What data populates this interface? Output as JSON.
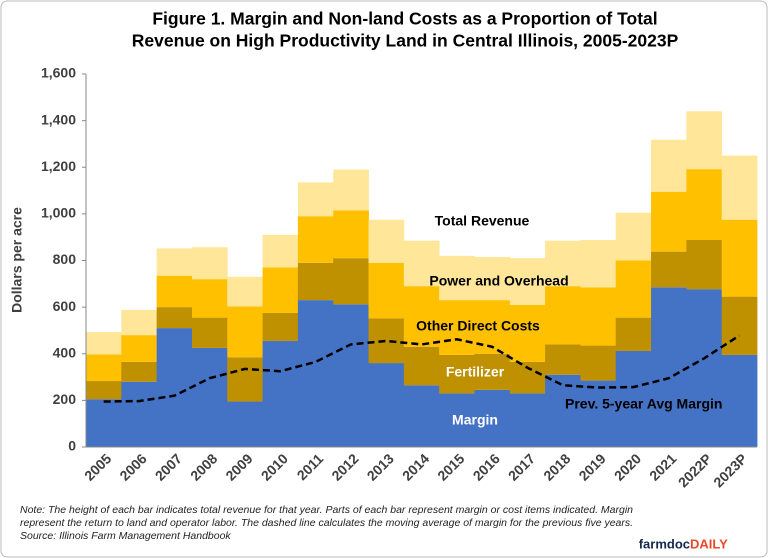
{
  "chart_data": {
    "type": "stacked_bar",
    "title": [
      "Figure 1. Margin and Non-land Costs as a Proportion of Total",
      "Revenue on High Productivity Land in Central Illinois, 2005-2023P"
    ],
    "y_label": "Dollars per acre",
    "categories": [
      "2005",
      "2006",
      "2007",
      "2008",
      "2009",
      "2010",
      "2011",
      "2012",
      "2013",
      "2014",
      "2015",
      "2016",
      "2017",
      "2018",
      "2019",
      "2020",
      "2021",
      "2022P",
      "2023P"
    ],
    "series": [
      {
        "name": "Margin",
        "color": "#4472c4",
        "values": [
          205,
          280,
          510,
          425,
          195,
          455,
          630,
          612,
          360,
          265,
          230,
          245,
          230,
          310,
          285,
          412,
          685,
          677,
          395
        ]
      },
      {
        "name": "Fertilizer",
        "color": "#bf9000",
        "values": [
          78,
          85,
          90,
          130,
          190,
          120,
          160,
          198,
          192,
          165,
          165,
          155,
          135,
          130,
          150,
          143,
          153,
          211,
          250
        ]
      },
      {
        "name": "Other Direct Costs",
        "color": "#ffc000",
        "values": [
          114,
          115,
          135,
          165,
          218,
          195,
          200,
          205,
          238,
          260,
          235,
          230,
          245,
          250,
          250,
          245,
          257,
          304,
          330
        ]
      },
      {
        "name": "Power and Overhead",
        "color": "#ffe699",
        "values": [
          96,
          108,
          117,
          137,
          127,
          140,
          145,
          175,
          185,
          195,
          190,
          185,
          200,
          195,
          203,
          205,
          223,
          248,
          275
        ]
      }
    ],
    "line": {
      "name": "Prev. 5-year Avg Margin",
      "color": "#000000",
      "dashed": true,
      "values": [
        195,
        197,
        220,
        295,
        335,
        325,
        365,
        440,
        455,
        440,
        462,
        430,
        340,
        265,
        255,
        257,
        295,
        380,
        478
      ]
    },
    "total_label": "Total Revenue",
    "ylim": [
      0,
      1600
    ],
    "yticks": [
      0,
      200,
      400,
      600,
      800,
      {
        "value": 1000,
        "label": "1,000"
      },
      {
        "value": 1200,
        "label": "1,200"
      },
      {
        "value": 1400,
        "label": "1,400"
      },
      {
        "value": 1600,
        "label": "1,600"
      }
    ],
    "grid": false,
    "note": [
      "Note: The height of each bar indicates total revenue for that year. Parts of each bar represent margin or cost items indicated. Margin",
      "represent the return to land and operator labor. The dashed line calculates the moving average of margin for the previous five years.",
      "Source: Illinois Farm Management Handbook"
    ],
    "logo": [
      "farmdoc",
      "DAILY"
    ]
  }
}
